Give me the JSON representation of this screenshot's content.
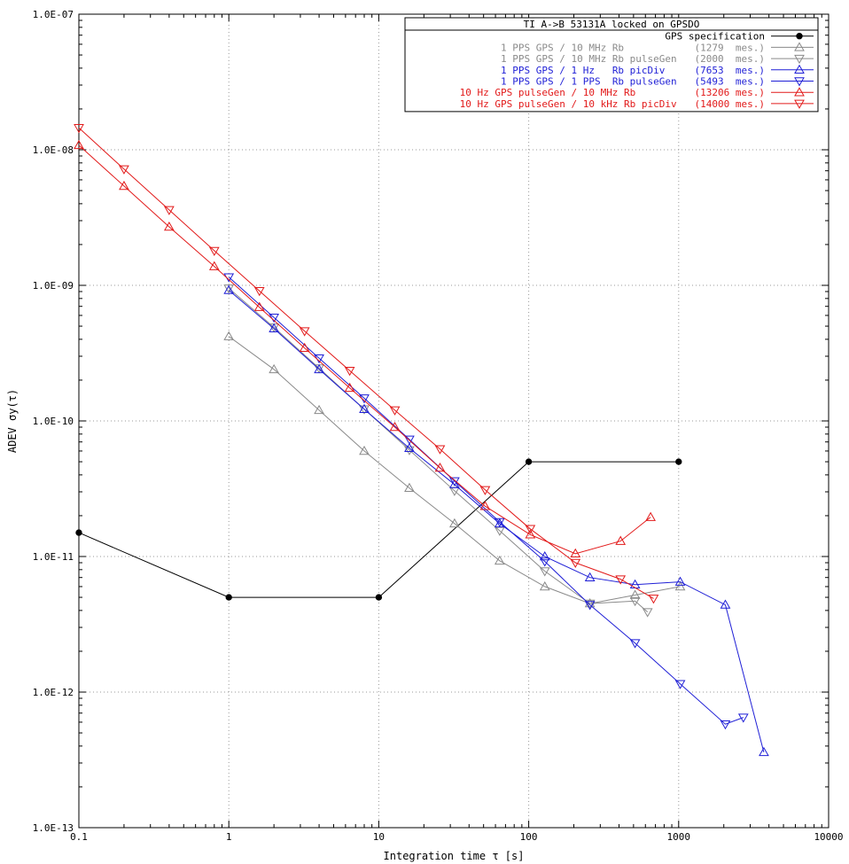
{
  "chart_data": {
    "type": "line",
    "title": "TI A->B 53131A locked on GPSDO",
    "xlabel": "Integration time τ [s]",
    "ylabel": "ADEV σy(τ)",
    "xscale": "log",
    "yscale": "log",
    "xlim": [
      0.1,
      10000
    ],
    "ylim": [
      1e-13,
      1e-07
    ],
    "grid": true,
    "legend_position": "top-right",
    "x_tick_labels": [
      "0.1",
      "1",
      "10",
      "100",
      "1000",
      "10000"
    ],
    "y_tick_labels": [
      "1.0E-07",
      "1.0E-08",
      "1.0E-09",
      "1.0E-10",
      "1.0E-11",
      "1.0E-12",
      "1.0E-13"
    ],
    "series": [
      {
        "name": "GPS specification",
        "legend_label": "GPS specification",
        "color": "#000000",
        "marker": "dot",
        "x": [
          0.1,
          1,
          10,
          100,
          1000
        ],
        "y": [
          1.5e-11,
          5e-12,
          5e-12,
          5e-11,
          5e-11
        ]
      },
      {
        "name": "1 PPS GPS / 10 MHz Rb",
        "legend_label": "1 PPS GPS / 10 MHz Rb            (1279  mes.)",
        "color": "#8a8a8a",
        "marker": "triangle-up",
        "x": [
          1,
          2,
          4,
          8,
          16,
          32,
          64,
          128,
          256,
          512,
          1024
        ],
        "y": [
          4.2e-10,
          2.4e-10,
          1.2e-10,
          6e-11,
          3.2e-11,
          1.75e-11,
          9.3e-12,
          6e-12,
          4.5e-12,
          5.2e-12,
          6e-12
        ]
      },
      {
        "name": "1 PPS GPS / 10 MHz Rb pulseGen",
        "legend_label": "1 PPS GPS / 10 MHz Rb pulseGen   (2000  mes.)",
        "color": "#8a8a8a",
        "marker": "triangle-down",
        "x": [
          1,
          2,
          4,
          8,
          16,
          32,
          64,
          128,
          256,
          512,
          620
        ],
        "y": [
          9.5e-10,
          4.9e-10,
          2.45e-10,
          1.22e-10,
          6.1e-11,
          3.05e-11,
          1.55e-11,
          7.8e-12,
          4.5e-12,
          4.7e-12,
          3.9e-12
        ]
      },
      {
        "name": "1 PPS GPS / 1 Hz Rb picDiv",
        "legend_label": "1 PPS GPS / 1 Hz   Rb picDiv     (7653  mes.)",
        "color": "#1f1fd6",
        "marker": "triangle-up",
        "x": [
          1,
          2,
          4,
          8,
          16,
          32,
          64,
          128,
          256,
          512,
          1024,
          2048,
          3700
        ],
        "y": [
          9.2e-10,
          4.8e-10,
          2.4e-10,
          1.22e-10,
          6.3e-11,
          3.4e-11,
          1.75e-11,
          1e-11,
          7e-12,
          6.2e-12,
          6.5e-12,
          4.4e-12,
          3.6e-13
        ]
      },
      {
        "name": "1 PPS GPS / 1 PPS Rb pulseGen",
        "legend_label": "1 PPS GPS / 1 PPS  Rb pulseGen   (5493  mes.)",
        "color": "#1f1fd6",
        "marker": "triangle-down",
        "x": [
          1,
          2,
          4,
          8,
          16,
          32,
          64,
          128,
          256,
          512,
          1024,
          2048,
          2700
        ],
        "y": [
          1.15e-09,
          5.8e-10,
          2.9e-10,
          1.47e-10,
          7.3e-11,
          3.6e-11,
          1.8e-11,
          9.2e-12,
          4.4e-12,
          2.3e-12,
          1.15e-12,
          5.8e-13,
          6.5e-13
        ]
      },
      {
        "name": "10 Hz GPS pulseGen / 10 MHz Rb",
        "legend_label": "10 Hz GPS pulseGen / 10 MHz Rb          (13206 mes.)",
        "color": "#e21a1a",
        "marker": "triangle-up",
        "x": [
          0.1,
          0.2,
          0.4,
          0.8,
          1.6,
          3.2,
          6.4,
          12.8,
          25.6,
          51.2,
          102.4,
          204.8,
          409.6,
          650
        ],
        "y": [
          1.08e-08,
          5.4e-09,
          2.7e-09,
          1.38e-09,
          6.9e-10,
          3.45e-10,
          1.75e-10,
          9e-11,
          4.5e-11,
          2.35e-11,
          1.45e-11,
          1.05e-11,
          1.3e-11,
          1.95e-11
        ]
      },
      {
        "name": "10 Hz GPS pulseGen / 10 kHz Rb picDiv",
        "legend_label": "10 Hz GPS pulseGen / 10 kHz Rb picDiv   (14000 mes.)",
        "color": "#e21a1a",
        "marker": "triangle-down",
        "x": [
          0.1,
          0.2,
          0.4,
          0.8,
          1.6,
          3.2,
          6.4,
          12.8,
          25.6,
          51.2,
          102.4,
          204.8,
          409.6,
          680
        ],
        "y": [
          1.45e-08,
          7.2e-09,
          3.6e-09,
          1.8e-09,
          9.1e-10,
          4.6e-10,
          2.35e-10,
          1.2e-10,
          6.2e-11,
          3.1e-11,
          1.6e-11,
          9e-12,
          6.8e-12,
          4.9e-12
        ]
      }
    ]
  }
}
